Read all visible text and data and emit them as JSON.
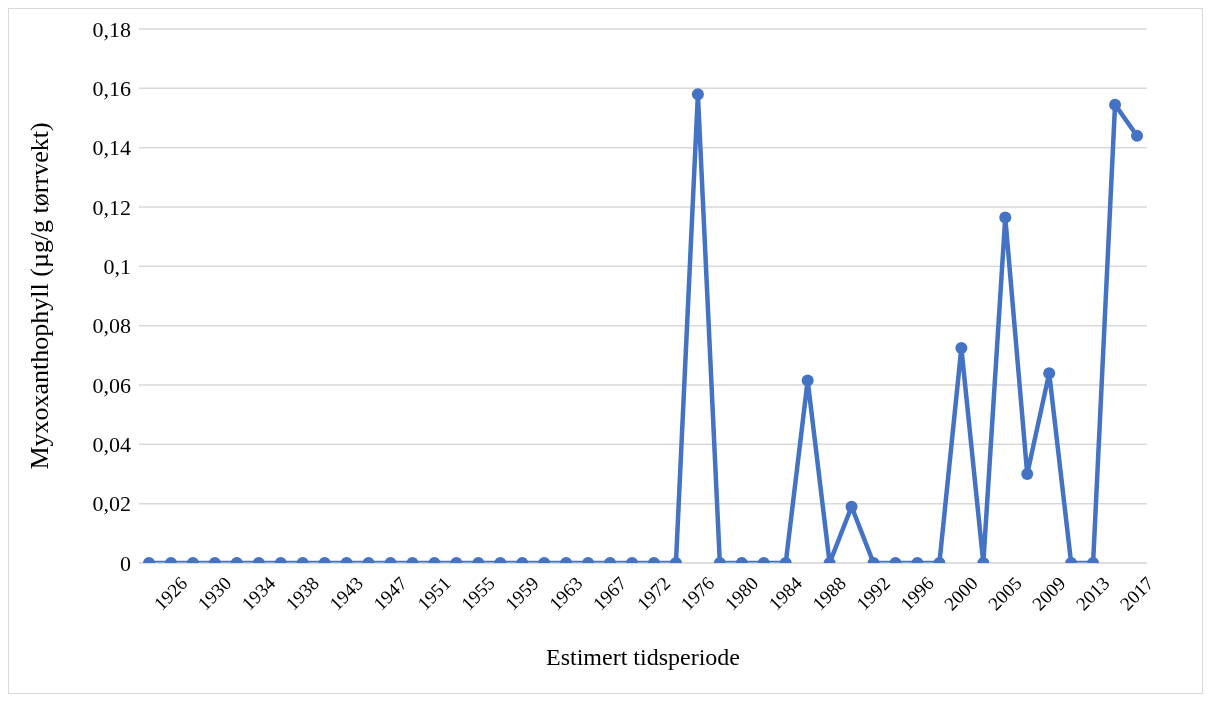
{
  "chart_data": {
    "type": "line",
    "xlabel": "Estimert tidsperiode",
    "ylabel": "Myxoxanthophyll (µg/g tørrvekt)",
    "categories": [
      null,
      "1926",
      null,
      "1930",
      null,
      "1934",
      null,
      "1938",
      null,
      "1943",
      null,
      "1947",
      null,
      "1951",
      null,
      "1955",
      null,
      "1959",
      null,
      "1963",
      null,
      "1967",
      null,
      "1972",
      null,
      "1976",
      null,
      "1980",
      null,
      "1984",
      null,
      "1988",
      null,
      "1992",
      null,
      "1996",
      null,
      "2000",
      null,
      "2005",
      null,
      "2009",
      null,
      "2013",
      null,
      "2017"
    ],
    "series": [
      {
        "color": "#4472c4",
        "values": [
          0,
          0,
          0,
          0,
          0,
          0,
          0,
          0,
          0,
          0,
          0,
          0,
          0,
          0,
          0,
          0,
          0,
          0,
          0,
          0,
          0,
          0,
          0,
          0,
          0,
          0.158,
          0,
          0,
          0,
          0,
          0.0615,
          0,
          0.019,
          0,
          0,
          0,
          0,
          0.0725,
          0,
          0.1165,
          0.03,
          0.064,
          0,
          0,
          0.1545,
          0.144
        ]
      }
    ],
    "ylim": [
      0,
      0.18
    ],
    "yticks": [
      {
        "value": 0,
        "label": "0"
      },
      {
        "value": 0.02,
        "label": "0,02"
      },
      {
        "value": 0.04,
        "label": "0,04"
      },
      {
        "value": 0.06,
        "label": "0,06"
      },
      {
        "value": 0.08,
        "label": "0,08"
      },
      {
        "value": 0.1,
        "label": "0,1"
      },
      {
        "value": 0.12,
        "label": "0,12"
      },
      {
        "value": 0.14,
        "label": "0,14"
      },
      {
        "value": 0.16,
        "label": "0,16"
      },
      {
        "value": 0.18,
        "label": "0,18"
      }
    ],
    "grid": "y",
    "marker": "circle",
    "line_style": "solid",
    "legend": false
  }
}
